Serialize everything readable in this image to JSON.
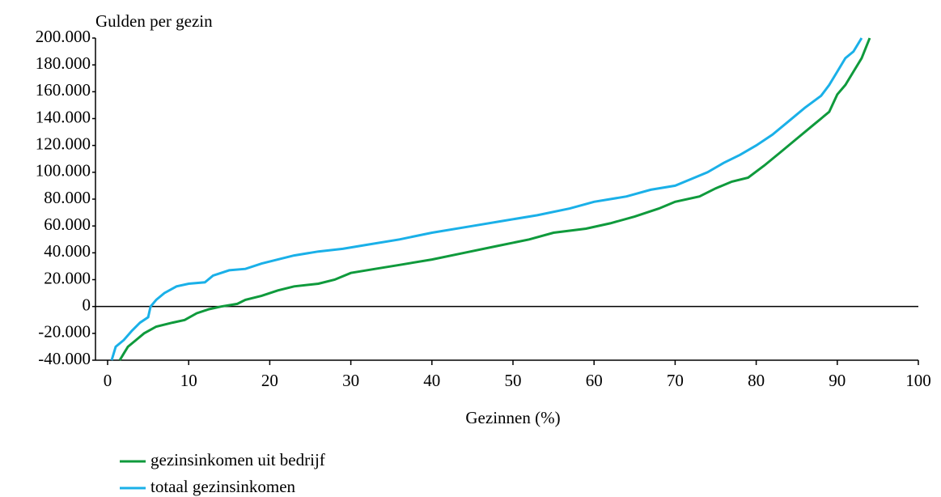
{
  "chart_data": {
    "type": "line",
    "y_label": "Gulden per gezin",
    "x_label": "Gezinnen (%)",
    "xlim": [
      0,
      100
    ],
    "xticks": [
      0,
      10,
      20,
      30,
      40,
      50,
      60,
      70,
      80,
      90,
      100
    ],
    "ylim": [
      -40000,
      200000
    ],
    "yticks": [
      {
        "value": -40000,
        "label": "-40.000"
      },
      {
        "value": -20000,
        "label": "-20.000"
      },
      {
        "value": 0,
        "label": "0"
      },
      {
        "value": 20000,
        "label": "20.000"
      },
      {
        "value": 40000,
        "label": "40.000"
      },
      {
        "value": 60000,
        "label": "60.000"
      },
      {
        "value": 80000,
        "label": "80.000"
      },
      {
        "value": 100000,
        "label": "100.000"
      },
      {
        "value": 120000,
        "label": "120.000"
      },
      {
        "value": 140000,
        "label": "140.000"
      },
      {
        "value": 160000,
        "label": "160.000"
      },
      {
        "value": 180000,
        "label": "180.000"
      },
      {
        "value": 200000,
        "label": "200.000"
      }
    ],
    "legend": "bottom-left",
    "series": [
      {
        "name": "gezinsinkomen uit bedrijf",
        "color": "#0f9a3c",
        "x": [
          1.5,
          2,
          2.5,
          3.5,
          4.5,
          6,
          8,
          9.5,
          11,
          12.5,
          14,
          16,
          17,
          19,
          21,
          23,
          26,
          28,
          30,
          33,
          36,
          40,
          44,
          48,
          52,
          55,
          59,
          62,
          65,
          68,
          70,
          73,
          75,
          77,
          79,
          81,
          83,
          85,
          87,
          89,
          90,
          91,
          92,
          93,
          94
        ],
        "values": [
          -40000,
          -35000,
          -30000,
          -25000,
          -20000,
          -15000,
          -12000,
          -10000,
          -5000,
          -2000,
          0,
          2000,
          5000,
          8000,
          12000,
          15000,
          17000,
          20000,
          25000,
          28000,
          31000,
          35000,
          40000,
          45000,
          50000,
          55000,
          58000,
          62000,
          67000,
          73000,
          78000,
          82000,
          88000,
          93000,
          96000,
          105000,
          115000,
          125000,
          135000,
          145000,
          158000,
          165000,
          175000,
          185000,
          200000
        ]
      },
      {
        "name": "totaal gezinsinkomen",
        "color": "#1ab0e8",
        "x": [
          0.5,
          1,
          2,
          3,
          4,
          5,
          5.3,
          6,
          7,
          8.5,
          10,
          12,
          13,
          15,
          17,
          19,
          21,
          23,
          26,
          29,
          32,
          36,
          40,
          45,
          49,
          53,
          57,
          60,
          64,
          67,
          70,
          72,
          74,
          76,
          78,
          80,
          82,
          84,
          86,
          88,
          89,
          90,
          91,
          92,
          93
        ],
        "values": [
          -40000,
          -30000,
          -25000,
          -18000,
          -12000,
          -8000,
          0,
          5000,
          10000,
          15000,
          17000,
          18000,
          23000,
          27000,
          28000,
          32000,
          35000,
          38000,
          41000,
          43000,
          46000,
          50000,
          55000,
          60000,
          64000,
          68000,
          73000,
          78000,
          82000,
          87000,
          90000,
          95000,
          100000,
          107000,
          113000,
          120000,
          128000,
          138000,
          148000,
          157000,
          165000,
          175000,
          185000,
          190000,
          200000
        ]
      }
    ]
  }
}
